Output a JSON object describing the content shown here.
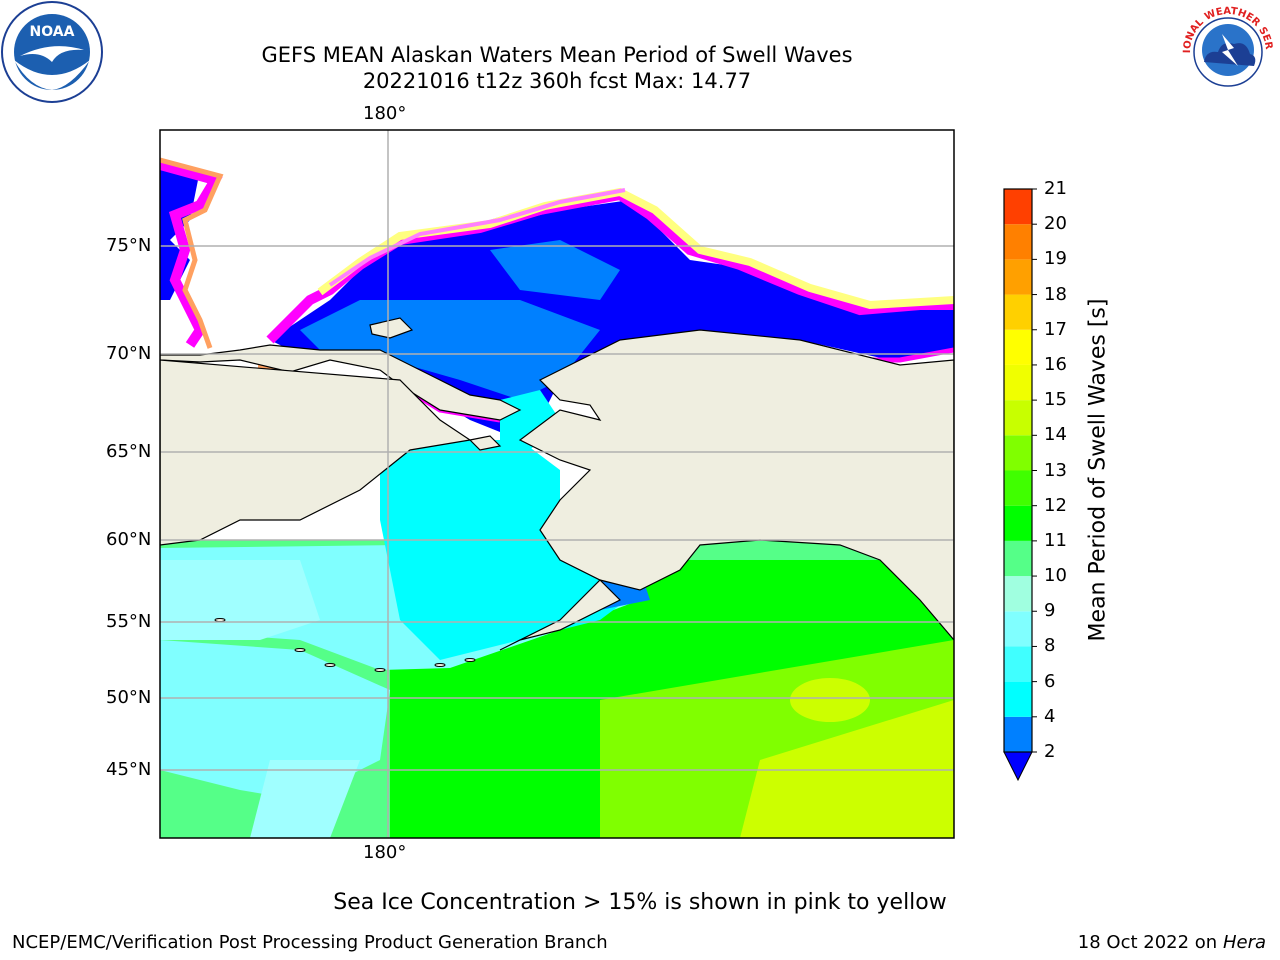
{
  "header": {
    "title_line1": "GEFS MEAN Alaskan Waters Mean Period of Swell Waves",
    "title_line2": "20221016 t12z 360h fcst   Max: 14.77"
  },
  "logos": {
    "left": {
      "icon": "noaa-logo",
      "text": "NOAA"
    },
    "right": {
      "icon": "nws-logo",
      "text": "NATIONAL WEATHER SERVICE"
    }
  },
  "map": {
    "lon_label_top": "180°",
    "lon_label_bottom": "180°",
    "lat_labels": [
      "75°N",
      "70°N",
      "65°N",
      "60°N",
      "55°N",
      "50°N",
      "45°N"
    ],
    "land_color": "#efeee0",
    "ocean_palette": {
      "blue": "#0000ff",
      "azure": "#0080ff",
      "cyan": "#00ffff",
      "light_cyan": "#80ffff",
      "pale_cyan": "#a0ffff",
      "light_green": "#55ff88",
      "green": "#00ff00",
      "lime": "#80ff00",
      "yellow_green": "#ccff00"
    },
    "ice_palette": [
      "#ff00ff",
      "#ff80ff",
      "#ffa060",
      "#ffff80"
    ]
  },
  "colorbar": {
    "title": "Mean Period of Swell Waves [s]",
    "ticks": [
      "2",
      "4",
      "6",
      "8",
      "9",
      "10",
      "11",
      "12",
      "13",
      "14",
      "15",
      "16",
      "17",
      "18",
      "19",
      "20",
      "21"
    ],
    "colors": [
      "#0080ff",
      "#00ffff",
      "#40ffff",
      "#80ffff",
      "#a0ffe0",
      "#55ff88",
      "#00ff00",
      "#40ff00",
      "#80ff00",
      "#c8ff00",
      "#f0ff00",
      "#ffff00",
      "#ffd000",
      "#ffa000",
      "#ff8000",
      "#ff4000",
      "#ff0000"
    ],
    "extend_color": "#0000ff"
  },
  "note": "Sea Ice Concentration > 15% is shown in pink to yellow",
  "footer": {
    "left": "NCEP/EMC/Verification Post Processing Product Generation Branch",
    "right_date": "18 Oct 2022 on",
    "right_host": "Hera"
  }
}
